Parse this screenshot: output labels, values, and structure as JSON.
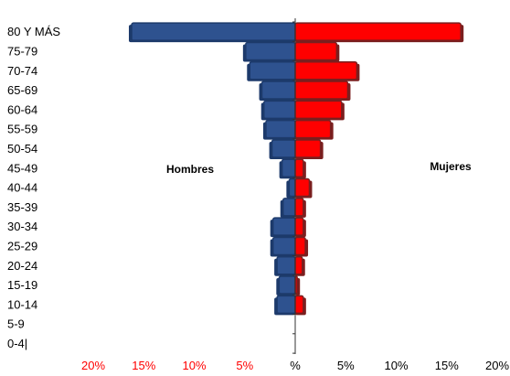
{
  "chart_data": {
    "type": "bar",
    "orientation": "horizontal",
    "layout": "population-pyramid",
    "title": "",
    "xlabel": "",
    "ylabel": "",
    "categories": [
      "80 Y MÁS",
      "75-79",
      "70-74",
      "65-69",
      "60-64",
      "55-59",
      "50-54",
      "45-49",
      "40-44",
      "35-39",
      "30-34",
      "25-29",
      "20-24",
      "15-19",
      "10-14",
      "5-9",
      "0-4|"
    ],
    "series": [
      {
        "name": "Hombres",
        "side": "left",
        "color": "#2E528F",
        "values": [
          16.2,
          4.9,
          4.5,
          3.3,
          3.1,
          2.9,
          2.3,
          1.3,
          0.6,
          1.2,
          2.2,
          2.2,
          1.8,
          1.6,
          1.8,
          0,
          0
        ]
      },
      {
        "name": "Mujeres",
        "side": "right",
        "color": "#FF0000",
        "values": [
          16.4,
          4.1,
          6.1,
          5.2,
          4.6,
          3.5,
          2.5,
          0.8,
          1.4,
          0.8,
          0.8,
          1.0,
          0.7,
          0.2,
          0.8,
          0,
          0
        ]
      }
    ],
    "xlim": [
      -20,
      20
    ],
    "x_ticks": [
      {
        "value": -20,
        "label": "20%",
        "color": "#FF0000"
      },
      {
        "value": -15,
        "label": "15%",
        "color": "#FF0000"
      },
      {
        "value": -10,
        "label": "10%",
        "color": "#FF0000"
      },
      {
        "value": -5,
        "label": "5%",
        "color": "#FF0000"
      },
      {
        "value": 0,
        "label": "%",
        "color": "#000000"
      },
      {
        "value": 5,
        "label": "5%",
        "color": "#000000"
      },
      {
        "value": 10,
        "label": "10%",
        "color": "#000000"
      },
      {
        "value": 15,
        "label": "15%",
        "color": "#000000"
      },
      {
        "value": 20,
        "label": "20%",
        "color": "#000000"
      }
    ],
    "grid": false,
    "legend": "none",
    "series_labels": [
      {
        "text": "Hombres",
        "placement": "left-middle"
      },
      {
        "text": "Mujeres",
        "placement": "right-middle"
      }
    ]
  }
}
